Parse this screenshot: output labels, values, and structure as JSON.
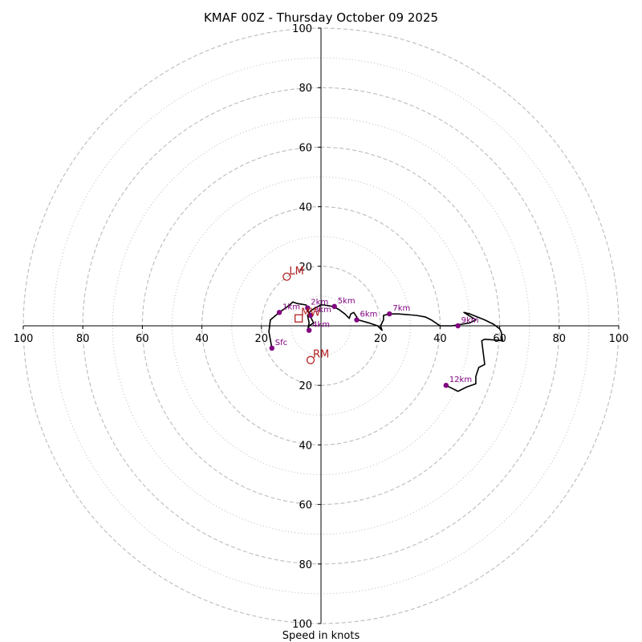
{
  "chart_data": {
    "type": "hodograph",
    "title": "KMAF 00Z - Thursday October 09 2025",
    "xlabel": "Speed in knots",
    "range": [
      -100,
      100
    ],
    "axis_ticks": [
      100,
      80,
      60,
      40,
      20
    ],
    "dashed_rings": [
      20,
      40,
      60,
      80,
      100
    ],
    "dotted_rings": [
      10,
      30,
      50,
      70,
      90
    ],
    "colors": {
      "trace": "#000000",
      "height_marker": "#800080",
      "motion_marker": "#b22222",
      "ring": "#bbbbbb",
      "axis": "#000000"
    },
    "trace": [
      [
        -16.5,
        -7.5
      ],
      [
        -17.5,
        -2
      ],
      [
        -17,
        2
      ],
      [
        -14,
        4.5
      ],
      [
        -10.5,
        7
      ],
      [
        -9.5,
        8
      ],
      [
        -8,
        7.5
      ],
      [
        -5,
        7
      ],
      [
        -4.5,
        5
      ],
      [
        -4,
        4
      ],
      [
        -3,
        2
      ],
      [
        -2.5,
        1
      ],
      [
        -4,
        0
      ],
      [
        -4.5,
        -1.5
      ],
      [
        -4,
        1
      ],
      [
        -4.5,
        3.5
      ],
      [
        -3.5,
        5
      ],
      [
        -2,
        6
      ],
      [
        0,
        7
      ],
      [
        1,
        7
      ],
      [
        4,
        6.5
      ],
      [
        6,
        5.5
      ],
      [
        8,
        4
      ],
      [
        9.5,
        2.5
      ],
      [
        10,
        4
      ],
      [
        11,
        4.5
      ],
      [
        12,
        3
      ],
      [
        12.5,
        2
      ],
      [
        16,
        1
      ],
      [
        19,
        0
      ],
      [
        20.5,
        -1.5
      ],
      [
        20,
        0
      ],
      [
        21,
        2
      ],
      [
        21,
        3.5
      ],
      [
        23,
        4
      ],
      [
        26,
        4
      ],
      [
        32,
        3.5
      ],
      [
        35,
        3
      ],
      [
        37,
        2
      ],
      [
        40,
        0
      ],
      [
        44,
        0
      ],
      [
        50,
        1
      ],
      [
        52,
        2
      ],
      [
        48,
        4.5
      ],
      [
        50,
        4
      ],
      [
        55,
        2
      ],
      [
        58,
        0.5
      ],
      [
        60,
        -1
      ],
      [
        60.5,
        -2
      ],
      [
        61,
        -5
      ],
      [
        55,
        -4.5
      ],
      [
        54,
        -5
      ],
      [
        55,
        -13
      ],
      [
        53,
        -14
      ],
      [
        52,
        -17
      ],
      [
        52,
        -19.5
      ],
      [
        49,
        -20.5
      ],
      [
        46,
        -22
      ],
      [
        42,
        -20
      ]
    ],
    "height_markers": [
      {
        "label": "Sfc",
        "x": -16.5,
        "y": -7.5
      },
      {
        "label": "1km",
        "x": -14,
        "y": 4.5
      },
      {
        "label": "2km",
        "x": -4.5,
        "y": 6
      },
      {
        "label": "3km",
        "x": -3.5,
        "y": 3.5
      },
      {
        "label": "4km",
        "x": -4,
        "y": -1.5
      },
      {
        "label": "5km",
        "x": 4.5,
        "y": 6.5
      },
      {
        "label": "6km",
        "x": 12,
        "y": 2
      },
      {
        "label": "7km",
        "x": 23,
        "y": 4
      },
      {
        "label": "9km",
        "x": 46,
        "y": 0
      },
      {
        "label": "12km",
        "x": 42,
        "y": -20
      }
    ],
    "storm_motions": [
      {
        "label": "LM",
        "x": -11.5,
        "y": 16.5,
        "shape": "circle"
      },
      {
        "label": "RM",
        "x": -3.5,
        "y": -11.5,
        "shape": "circle"
      },
      {
        "label": "MW",
        "x": -7.5,
        "y": 2.5,
        "shape": "square"
      }
    ]
  }
}
